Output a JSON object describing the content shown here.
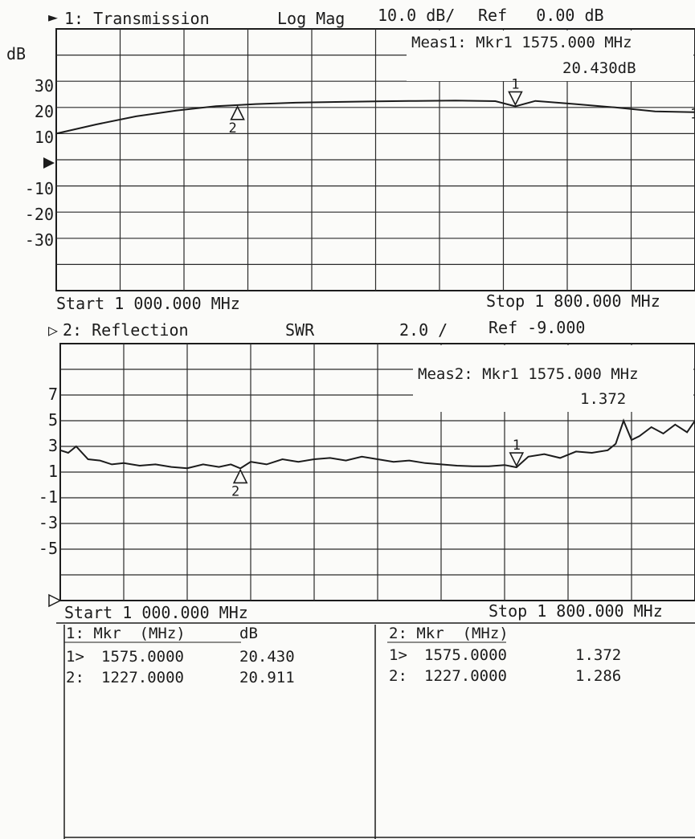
{
  "chart_data": [
    {
      "type": "line",
      "channel_label": "1: Transmission",
      "format": "Log Mag",
      "scale": "10.0 dB/",
      "reference": "Ref   0.00 dB",
      "unit_label": "dB",
      "marker_readout": {
        "line1": "Meas1: Mkr1 1575.000 MHz",
        "line2": "20.430dB"
      },
      "start_label": "Start 1 000.000 MHz",
      "stop_label": "Stop 1 800.000 MHz",
      "y_tick_labels": [
        "30",
        "20",
        "10",
        "-10",
        "-20",
        "-30"
      ],
      "xlim": [
        1000,
        1800
      ],
      "ylim": [
        -50,
        50
      ],
      "grid": true,
      "x": [
        1000,
        1050,
        1100,
        1150,
        1200,
        1227,
        1250,
        1300,
        1350,
        1400,
        1450,
        1500,
        1550,
        1575,
        1600,
        1650,
        1700,
        1750,
        1800
      ],
      "series": [
        {
          "values": [
            10.0,
            13.5,
            16.6,
            18.8,
            20.5,
            20.9,
            21.3,
            21.8,
            22.1,
            22.3,
            22.5,
            22.6,
            22.4,
            20.4,
            22.5,
            21.3,
            20.0,
            18.5,
            18.2
          ]
        }
      ],
      "markers": [
        {
          "label": "1",
          "x": 1575,
          "value": 20.43,
          "direction": "down"
        },
        {
          "label": "2",
          "x": 1227,
          "value": 20.911,
          "direction": "up"
        }
      ],
      "end_marker": "1"
    },
    {
      "type": "line",
      "channel_label": "2: Reflection",
      "format": "SWR",
      "scale": "2.0 /",
      "reference": "Ref -9.000",
      "marker_readout": {
        "line1": "Meas2: Mkr1 1575.000 MHz",
        "line2": "1.372"
      },
      "start_label": "Start 1 000.000 MHz",
      "stop_label": "Stop 1 800.000 MHz",
      "y_tick_labels": [
        "7",
        "5",
        "3",
        "1",
        "-1",
        "-3",
        "-5"
      ],
      "xlim": [
        1000,
        1800
      ],
      "ylim": [
        -9,
        11
      ],
      "grid": true,
      "x": [
        1000,
        1010,
        1020,
        1035,
        1050,
        1065,
        1080,
        1100,
        1120,
        1140,
        1160,
        1180,
        1200,
        1215,
        1227,
        1240,
        1260,
        1280,
        1300,
        1320,
        1340,
        1360,
        1380,
        1400,
        1420,
        1440,
        1460,
        1480,
        1500,
        1520,
        1540,
        1560,
        1575,
        1590,
        1610,
        1630,
        1650,
        1670,
        1690,
        1700,
        1710,
        1720,
        1730,
        1745,
        1760,
        1775,
        1790,
        1800
      ],
      "series": [
        {
          "values": [
            2.7,
            2.5,
            3.0,
            2.0,
            1.9,
            1.6,
            1.7,
            1.5,
            1.6,
            1.4,
            1.3,
            1.6,
            1.4,
            1.6,
            1.29,
            1.8,
            1.6,
            2.0,
            1.8,
            2.0,
            2.1,
            1.9,
            2.2,
            2.0,
            1.8,
            1.9,
            1.7,
            1.6,
            1.5,
            1.45,
            1.45,
            1.55,
            1.37,
            2.2,
            2.4,
            2.1,
            2.6,
            2.5,
            2.7,
            3.2,
            5.0,
            3.5,
            3.8,
            4.5,
            4.0,
            4.7,
            4.1,
            5.0
          ]
        }
      ],
      "markers": [
        {
          "label": "1",
          "x": 1575,
          "value": 1.372,
          "direction": "down"
        },
        {
          "label": "2",
          "x": 1227,
          "value": 1.286,
          "direction": "up"
        }
      ]
    }
  ],
  "marker_table": {
    "left": {
      "header_col1": "1: Mkr  (MHz)",
      "header_col2": "dB",
      "rows": [
        {
          "mkr": "1>",
          "freq": "1575.0000",
          "value": "20.430"
        },
        {
          "mkr": "2:",
          "freq": "1227.0000",
          "value": "20.911"
        }
      ]
    },
    "right": {
      "header_col1": "2: Mkr  (MHz)",
      "header_col2": "",
      "rows": [
        {
          "mkr": "1>",
          "freq": "1575.0000",
          "value": "1.372"
        },
        {
          "mkr": "2:",
          "freq": "1227.0000",
          "value": "1.286"
        }
      ]
    }
  }
}
